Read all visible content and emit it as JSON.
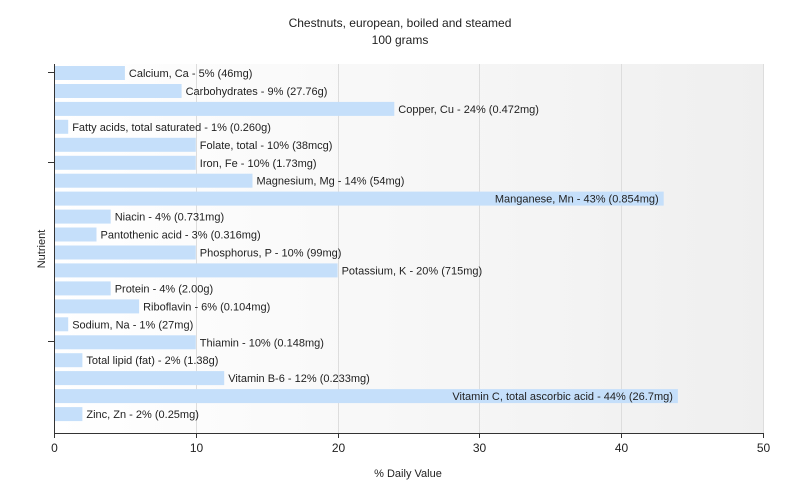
{
  "chart_data": {
    "type": "bar",
    "orientation": "horizontal",
    "title": "Chestnuts, european, boiled and steamed",
    "subtitle": "100 grams",
    "xlabel": "% Daily Value",
    "ylabel": "Nutrient",
    "xlim": [
      0,
      50
    ],
    "xticks": [
      "0",
      "10",
      "20",
      "30",
      "40",
      "50"
    ],
    "grid": true,
    "bar_color": "#c5dffa",
    "categories": [
      "Calcium, Ca",
      "Carbohydrates",
      "Copper, Cu",
      "Fatty acids, total saturated",
      "Folate, total",
      "Iron, Fe",
      "Magnesium, Mg",
      "Manganese, Mn",
      "Niacin",
      "Pantothenic acid",
      "Phosphorus, P",
      "Potassium, K",
      "Protein",
      "Riboflavin",
      "Sodium, Na",
      "Thiamin",
      "Total lipid (fat)",
      "Vitamin B-6",
      "Vitamin C, total ascorbic acid",
      "Zinc, Zn"
    ],
    "values": [
      5,
      9,
      24,
      1,
      10,
      10,
      14,
      43,
      4,
      3,
      10,
      20,
      4,
      6,
      1,
      10,
      2,
      12,
      44,
      2
    ],
    "labels": [
      "Calcium, Ca - 5% (46mg)",
      "Carbohydrates - 9% (27.76g)",
      "Copper, Cu - 24% (0.472mg)",
      "Fatty acids, total saturated - 1% (0.260g)",
      "Folate, total - 10% (38mcg)",
      "Iron, Fe - 10% (1.73mg)",
      "Magnesium, Mg - 14% (54mg)",
      "Manganese, Mn - 43% (0.854mg)",
      "Niacin - 4% (0.731mg)",
      "Pantothenic acid - 3% (0.316mg)",
      "Phosphorus, P - 10% (99mg)",
      "Potassium, K - 20% (715mg)",
      "Protein - 4% (2.00g)",
      "Riboflavin - 6% (0.104mg)",
      "Sodium, Na - 1% (27mg)",
      "Thiamin - 10% (0.148mg)",
      "Total lipid (fat) - 2% (1.38g)",
      "Vitamin B-6 - 12% (0.233mg)",
      "Vitamin C, total ascorbic acid - 44% (26.7mg)",
      "Zinc, Zn - 2% (0.25mg)"
    ]
  }
}
